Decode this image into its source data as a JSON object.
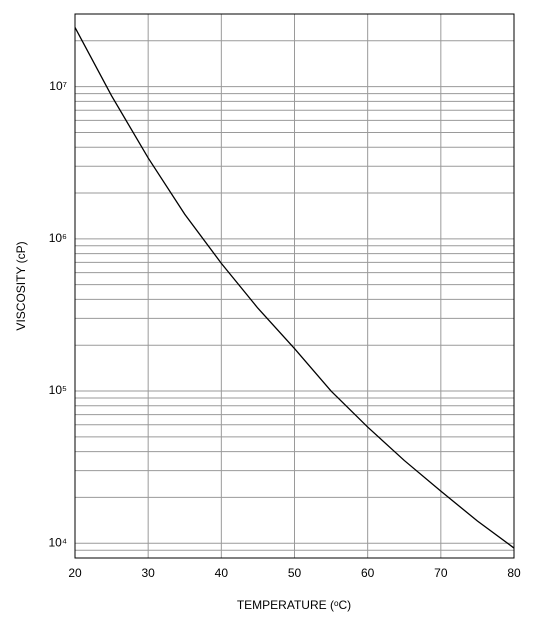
{
  "chart_data": {
    "type": "line",
    "xlabel": "TEMPERATURE (ᵒC)",
    "ylabel": "VISCOSITY (cP)",
    "x": [
      20,
      25,
      30,
      35,
      40,
      45,
      50,
      55,
      60,
      65,
      70,
      75,
      80
    ],
    "series": [
      {
        "color": "#000000",
        "values": [
          24500000,
          8700000,
          3400000,
          1450000,
          690000,
          350000,
          190000,
          100000,
          58000,
          35000,
          22000,
          14000,
          9300
        ]
      }
    ],
    "xlim": [
      20,
      80
    ],
    "xticks": [
      20,
      30,
      40,
      50,
      60,
      70,
      80
    ],
    "ylim": [
      8000,
      30000000
    ],
    "log_y": true,
    "yticks": [
      {
        "value": 10000,
        "label": "10⁴"
      },
      {
        "value": 100000,
        "label": "10⁵"
      },
      {
        "value": 1000000,
        "label": "10⁶"
      },
      {
        "value": 10000000,
        "label": "10⁷"
      }
    ],
    "yminorticks": [
      9000,
      20000,
      30000,
      40000,
      50000,
      60000,
      70000,
      80000,
      90000,
      200000,
      300000,
      400000,
      500000,
      600000,
      700000,
      800000,
      900000,
      2000000,
      3000000,
      4000000,
      5000000,
      6000000,
      7000000,
      8000000,
      9000000,
      20000000
    ],
    "grid": true
  }
}
